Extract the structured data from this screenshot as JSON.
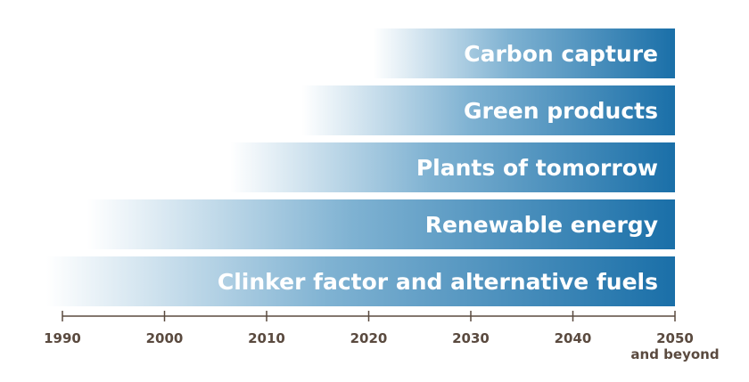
{
  "chart_data": {
    "type": "bar",
    "orientation": "horizontal",
    "categories": [
      "Carbon capture",
      "Green products",
      "Plants of tomorrow",
      "Renewable energy",
      "Clinker factor and alternative fuels"
    ],
    "series": [
      {
        "start": [
          2022,
          2015,
          2008,
          1994,
          1990
        ],
        "end": [
          2050,
          2050,
          2050,
          2050,
          2050
        ]
      }
    ],
    "x_ticks": [
      1990,
      2000,
      2010,
      2020,
      2030,
      2040,
      2050
    ],
    "x_tick_labels": [
      "1990",
      "2000",
      "2010",
      "2020",
      "2030",
      "2040",
      "2050"
    ],
    "last_tick_sublabel": "and beyond",
    "xlim": [
      1990,
      2050
    ],
    "title": "",
    "xlabel": "",
    "ylabel": "",
    "grid": false,
    "colors": {
      "bar_end": "#1a6fa8",
      "bar_mid": "#7fb2d2",
      "bar_start": "#ffffff",
      "label": "#ffffff",
      "axis": "#5a4a3f"
    }
  }
}
